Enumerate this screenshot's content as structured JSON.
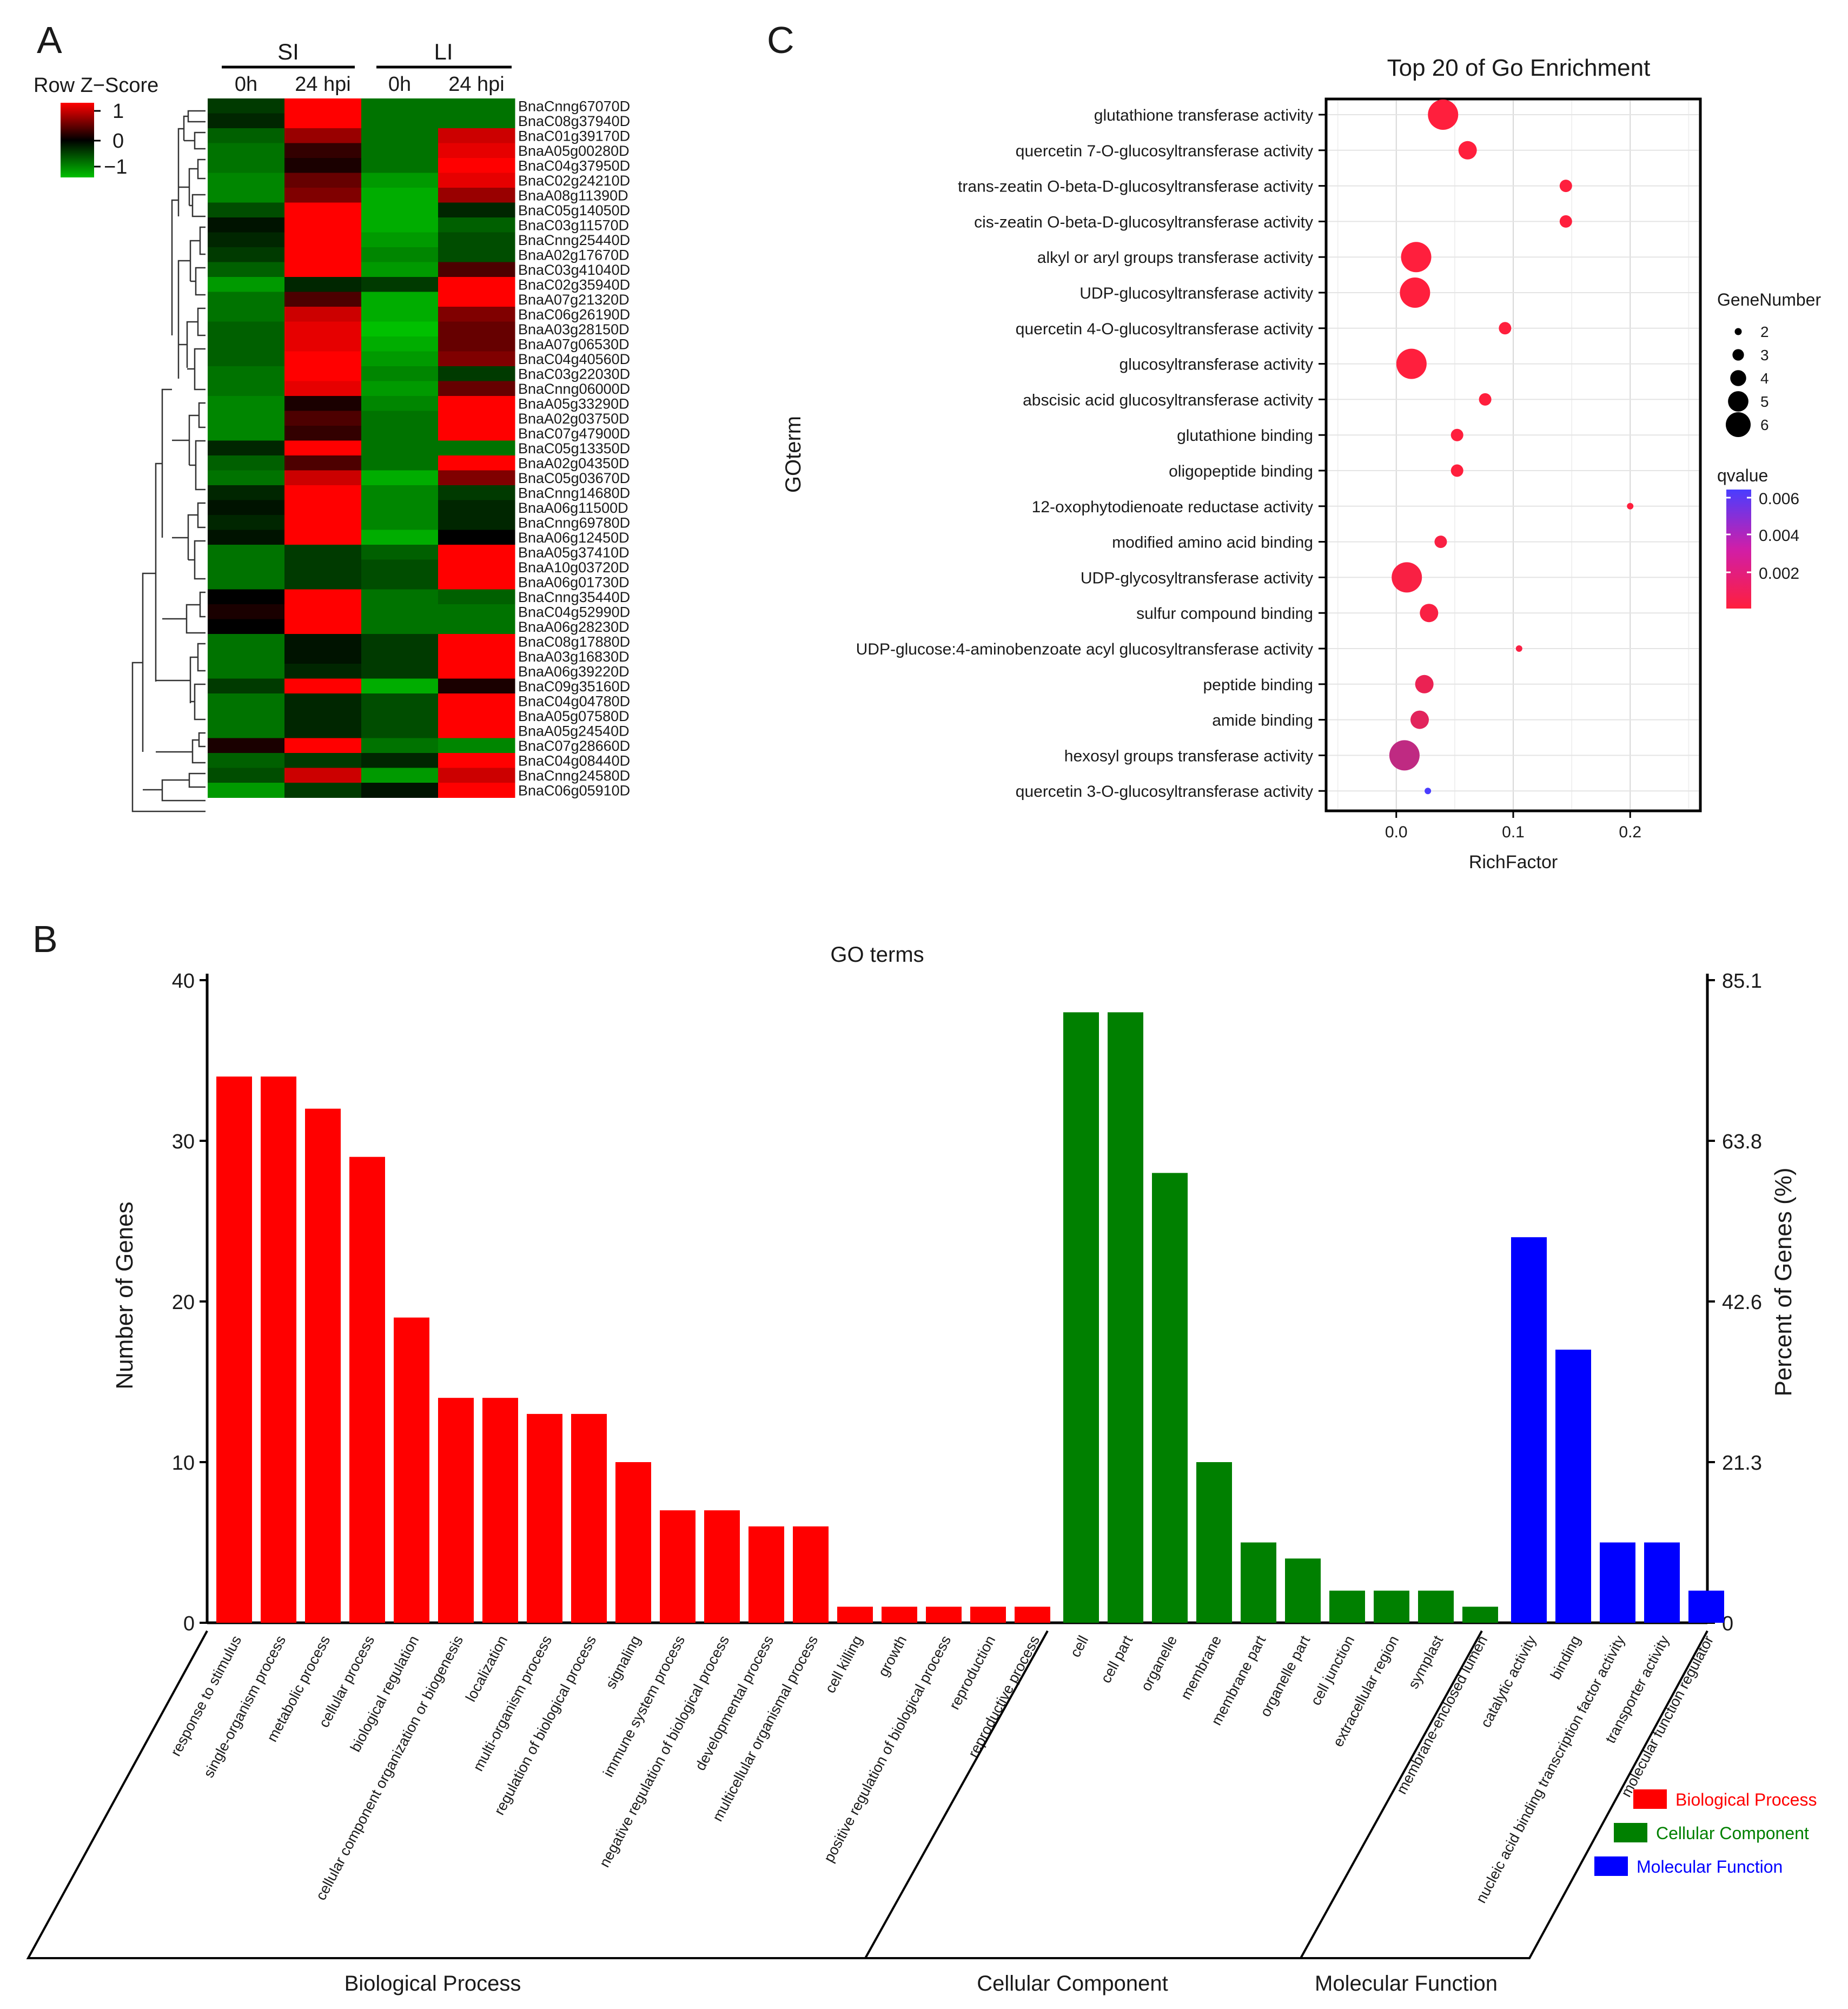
{
  "panel_labels": {
    "a": "A",
    "b": "B",
    "c": "C"
  },
  "colors": {
    "bp": "#ff0000",
    "cc": "#008000",
    "mf": "#0000ff",
    "heat_high": "#ff0000",
    "heat_mid": "#000000",
    "heat_low": "#00c000",
    "q_low": "#ff1f3d",
    "q_high": "#4a3dff"
  },
  "heatmap": {
    "legend_title": "Row Z−Score",
    "legend_ticks": [
      "1",
      "0",
      "−1"
    ],
    "groups": [
      "SI",
      "LI"
    ],
    "columns": [
      "0h",
      "24 hpi",
      "0h",
      "24 hpi"
    ],
    "genes": [
      "BnaCnng67070D",
      "BnaC08g37940D",
      "BnaC01g39170D",
      "BnaA05g00280D",
      "BnaC04g37950D",
      "BnaC02g24210D",
      "BnaA08g11390D",
      "BnaC05g14050D",
      "BnaC03g11570D",
      "BnaCnng25440D",
      "BnaA02g17670D",
      "BnaC03g41040D",
      "BnaC02g35940D",
      "BnaA07g21320D",
      "BnaC06g26190D",
      "BnaA03g28150D",
      "BnaA07g06530D",
      "BnaC04g40560D",
      "BnaC03g22030D",
      "BnaCnng06000D",
      "BnaA05g33290D",
      "BnaA02g03750D",
      "BnaC07g47900D",
      "BnaC05g13350D",
      "BnaA02g04350D",
      "BnaC05g03670D",
      "BnaCnng14680D",
      "BnaA06g11500D",
      "BnaCnng69780D",
      "BnaA06g12450D",
      "BnaA05g37410D",
      "BnaA10g03720D",
      "BnaA06g01730D",
      "BnaCnng35440D",
      "BnaC04g52990D",
      "BnaA06g28230D",
      "BnaC08g17880D",
      "BnaA03g16830D",
      "BnaA06g39220D",
      "BnaC09g35160D",
      "BnaC04g04780D",
      "BnaA05g07580D",
      "BnaA05g24540D",
      "BnaC07g28660D",
      "BnaC04g08440D",
      "BnaCnng24580D",
      "BnaC06g05910D"
    ],
    "zscores": [
      [
        -0.3,
        1.0,
        -0.6,
        -0.6
      ],
      [
        -0.2,
        1.0,
        -0.6,
        -0.6
      ],
      [
        -0.5,
        0.6,
        -0.6,
        0.8
      ],
      [
        -0.6,
        0.2,
        -0.6,
        0.9
      ],
      [
        -0.6,
        0.1,
        -0.6,
        1.0
      ],
      [
        -0.7,
        0.4,
        -0.8,
        0.9
      ],
      [
        -0.7,
        0.5,
        -0.9,
        0.6
      ],
      [
        -0.4,
        1.0,
        -0.9,
        -0.2
      ],
      [
        -0.1,
        1.0,
        -0.9,
        -0.5
      ],
      [
        -0.2,
        1.0,
        -0.8,
        -0.4
      ],
      [
        -0.3,
        1.0,
        -0.7,
        -0.4
      ],
      [
        -0.5,
        1.0,
        -0.8,
        0.3
      ],
      [
        -0.8,
        -0.2,
        -0.3,
        1.0
      ],
      [
        -0.6,
        0.3,
        -0.9,
        1.0
      ],
      [
        -0.6,
        0.8,
        -0.9,
        0.5
      ],
      [
        -0.5,
        0.9,
        -1.0,
        0.4
      ],
      [
        -0.5,
        0.9,
        -0.9,
        0.4
      ],
      [
        -0.5,
        1.0,
        -0.8,
        0.5
      ],
      [
        -0.6,
        1.0,
        -0.7,
        -0.3
      ],
      [
        -0.6,
        0.9,
        -0.8,
        0.4
      ],
      [
        -0.7,
        0.1,
        -0.7,
        1.0
      ],
      [
        -0.7,
        0.3,
        -0.6,
        1.0
      ],
      [
        -0.7,
        0.2,
        -0.6,
        1.0
      ],
      [
        -0.2,
        1.0,
        -0.6,
        -0.6
      ],
      [
        -0.5,
        0.3,
        -0.6,
        1.0
      ],
      [
        -0.6,
        0.8,
        -0.9,
        0.5
      ],
      [
        -0.2,
        1.0,
        -0.7,
        -0.3
      ],
      [
        -0.1,
        1.0,
        -0.7,
        -0.2
      ],
      [
        -0.2,
        1.0,
        -0.7,
        -0.2
      ],
      [
        -0.1,
        1.0,
        -0.9,
        0.0
      ],
      [
        -0.6,
        -0.3,
        -0.5,
        1.0
      ],
      [
        -0.6,
        -0.3,
        -0.4,
        1.0
      ],
      [
        -0.6,
        -0.3,
        -0.4,
        1.0
      ],
      [
        0.0,
        1.0,
        -0.6,
        -0.5
      ],
      [
        0.1,
        1.0,
        -0.6,
        -0.6
      ],
      [
        0.0,
        1.0,
        -0.6,
        -0.6
      ],
      [
        -0.6,
        -0.1,
        -0.3,
        1.0
      ],
      [
        -0.6,
        -0.1,
        -0.3,
        1.0
      ],
      [
        -0.6,
        -0.2,
        -0.3,
        1.0
      ],
      [
        -0.3,
        1.0,
        -0.9,
        0.1
      ],
      [
        -0.6,
        -0.2,
        -0.4,
        1.0
      ],
      [
        -0.6,
        -0.2,
        -0.4,
        1.0
      ],
      [
        -0.6,
        -0.2,
        -0.4,
        1.0
      ],
      [
        0.1,
        1.0,
        -0.6,
        -0.7
      ],
      [
        -0.5,
        -0.3,
        -0.2,
        1.0
      ],
      [
        -0.4,
        0.8,
        -0.8,
        0.8
      ],
      [
        -0.8,
        -0.3,
        -0.1,
        1.0
      ]
    ]
  },
  "chart_data": [
    {
      "type": "scatter",
      "title": "Top 20 of Go Enrichment",
      "xlabel": "RichFactor",
      "ylabel": "GOterm",
      "xlim": [
        -0.06,
        0.26
      ],
      "xticks": [
        "0.0",
        "0.1",
        "0.2"
      ],
      "size_legend_title": "GeneNumber",
      "size_legend_values": [
        2,
        3,
        4,
        5,
        6
      ],
      "color_legend_title": "qvalue",
      "color_legend_ticks": [
        "0.006",
        "0.004",
        "0.002"
      ],
      "terms": [
        "glutathione transferase activity",
        "quercetin 7-O-glucosyltransferase activity",
        "trans-zeatin O-beta-D-glucosyltransferase activity",
        "cis-zeatin O-beta-D-glucosyltransferase activity",
        "alkyl or aryl groups transferase activity",
        "UDP-glucosyltransferase activity",
        "quercetin 4-O-glucosyltransferase activity",
        "glucosyltransferase activity",
        "abscisic acid glucosyltransferase activity",
        "glutathione binding",
        "oligopeptide binding",
        "12-oxophytodienoate reductase activity",
        "modified amino acid binding",
        "UDP-glycosyltransferase activity",
        "sulfur compound binding",
        "UDP-glucose:4-aminobenzoate acyl glucosyltransferase activity",
        "peptide binding",
        "amide binding",
        "hexosyl groups transferase activity",
        "quercetin 3-O-glucosyltransferase activity"
      ],
      "rich_factor": [
        0.04,
        0.061,
        0.145,
        0.145,
        0.017,
        0.016,
        0.093,
        0.013,
        0.076,
        0.052,
        0.052,
        0.2,
        0.038,
        0.009,
        0.028,
        0.105,
        0.024,
        0.02,
        0.007,
        0.027
      ],
      "gene_number": [
        6,
        4,
        3,
        3,
        6,
        6,
        3,
        6,
        3,
        3,
        3,
        2,
        3,
        6,
        4,
        2,
        4,
        4,
        6,
        2
      ],
      "qvalue": [
        0.0003,
        0.0003,
        0.0003,
        0.0003,
        0.0003,
        0.0003,
        0.0003,
        0.0003,
        0.0003,
        0.0003,
        0.0003,
        0.0003,
        0.0005,
        0.0005,
        0.0005,
        0.0005,
        0.001,
        0.0013,
        0.0025,
        0.0068
      ]
    },
    {
      "type": "bar",
      "title": "GO terms",
      "ylabel": "Number of Genes",
      "ylabel_right": "Percent of Genes (%)",
      "ylim": [
        0,
        40
      ],
      "yticks": [
        0,
        10,
        20,
        30,
        40
      ],
      "yticks_right": [
        "0",
        "21.3",
        "42.6",
        "63.8",
        "85.1"
      ],
      "groups": [
        "Biological Process",
        "Cellular Component",
        "Molecular Function"
      ],
      "categories": [
        "response to stimulus",
        "single-organism process",
        "metabolic process",
        "cellular process",
        "biological regulation",
        "cellular component organization or biogenesis",
        "localization",
        "multi-organism process",
        "regulation of biological process",
        "signaling",
        "immune system process",
        "negative regulation of biological process",
        "developmental process",
        "multicellular organismal process",
        "cell killing",
        "growth",
        "positive regulation of biological process",
        "reproduction",
        "reproductive process",
        "cell",
        "cell part",
        "organelle",
        "membrane",
        "membrane part",
        "organelle part",
        "cell junction",
        "extracellular region",
        "symplast",
        "membrane-enclosed lumen",
        "catalytic activity",
        "binding",
        "nucleic acid binding transcription factor activity",
        "transporter activity",
        "molecular function regulator"
      ],
      "values": [
        34,
        34,
        32,
        29,
        19,
        14,
        14,
        13,
        13,
        10,
        7,
        7,
        6,
        6,
        1,
        1,
        1,
        1,
        1,
        38,
        38,
        28,
        10,
        5,
        4,
        2,
        2,
        2,
        1,
        24,
        17,
        5,
        5,
        2
      ],
      "category_group": [
        0,
        0,
        0,
        0,
        0,
        0,
        0,
        0,
        0,
        0,
        0,
        0,
        0,
        0,
        0,
        0,
        0,
        0,
        0,
        1,
        1,
        1,
        1,
        1,
        1,
        1,
        1,
        1,
        1,
        2,
        2,
        2,
        2,
        2
      ],
      "legend": [
        "Biological Process",
        "Cellular Component",
        "Molecular Function"
      ]
    }
  ]
}
